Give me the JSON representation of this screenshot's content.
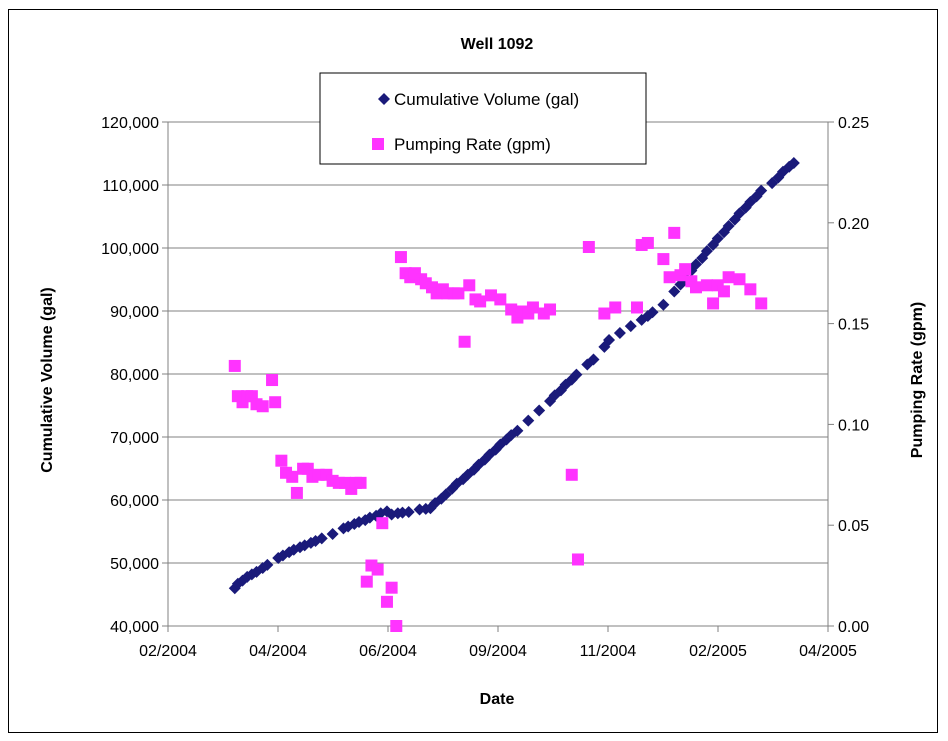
{
  "chart_data": {
    "type": "scatter",
    "title": "Well 1092",
    "xlabel": "Date",
    "ylabel": "Cumulative Volume (gal)",
    "y2label": "Pumping Rate (gpm)",
    "x_ticks": [
      "02/2004",
      "04/2004",
      "06/2004",
      "09/2004",
      "11/2004",
      "02/2005",
      "04/2005"
    ],
    "y_ticks": [
      "40,000",
      "50,000",
      "60,000",
      "70,000",
      "80,000",
      "90,000",
      "100,000",
      "110,000",
      "120,000"
    ],
    "y2_ticks": [
      "0.00",
      "0.05",
      "0.10",
      "0.15",
      "0.20",
      "0.25"
    ],
    "xlim": [
      "2004-02-01",
      "2005-04-01"
    ],
    "ylim": [
      40000,
      120000
    ],
    "y2lim": [
      0,
      0.25
    ],
    "grid": "horizontal",
    "legend_position": "top-center",
    "series": [
      {
        "name": "Cumulative Volume (gal)",
        "axis": "left",
        "color": "#1a1a7a",
        "marker": "diamond",
        "points": [
          [
            "2004-03-15",
            46000
          ],
          [
            "2004-03-17",
            46700
          ],
          [
            "2004-03-20",
            47200
          ],
          [
            "2004-03-23",
            47800
          ],
          [
            "2004-03-26",
            48200
          ],
          [
            "2004-03-29",
            48600
          ],
          [
            "2004-04-02",
            49200
          ],
          [
            "2004-04-05",
            49700
          ],
          [
            "2004-04-12",
            50800
          ],
          [
            "2004-04-15",
            51200
          ],
          [
            "2004-04-19",
            51700
          ],
          [
            "2004-04-22",
            52100
          ],
          [
            "2004-04-26",
            52500
          ],
          [
            "2004-04-29",
            52800
          ],
          [
            "2004-05-03",
            53200
          ],
          [
            "2004-05-06",
            53500
          ],
          [
            "2004-05-10",
            53900
          ],
          [
            "2004-05-17",
            54600
          ],
          [
            "2004-05-24",
            55500
          ],
          [
            "2004-05-27",
            55800
          ],
          [
            "2004-05-31",
            56200
          ],
          [
            "2004-06-03",
            56500
          ],
          [
            "2004-06-07",
            56800
          ],
          [
            "2004-06-10",
            57200
          ],
          [
            "2004-06-14",
            57500
          ],
          [
            "2004-06-17",
            57900
          ],
          [
            "2004-06-21",
            58200
          ],
          [
            "2004-06-24",
            57700
          ],
          [
            "2004-06-28",
            57900
          ],
          [
            "2004-07-01",
            58000
          ],
          [
            "2004-07-05",
            58100
          ],
          [
            "2004-07-12",
            58500
          ],
          [
            "2004-07-16",
            58600
          ],
          [
            "2004-07-19",
            58700
          ],
          [
            "2004-07-22",
            59500
          ],
          [
            "2004-07-26",
            60200
          ],
          [
            "2004-07-29",
            60900
          ],
          [
            "2004-08-02",
            61800
          ],
          [
            "2004-08-05",
            62600
          ],
          [
            "2004-08-09",
            63300
          ],
          [
            "2004-08-12",
            64000
          ],
          [
            "2004-08-16",
            64800
          ],
          [
            "2004-08-19",
            65600
          ],
          [
            "2004-08-23",
            66400
          ],
          [
            "2004-08-26",
            67200
          ],
          [
            "2004-08-30",
            68000
          ],
          [
            "2004-09-02",
            68800
          ],
          [
            "2004-09-06",
            69600
          ],
          [
            "2004-09-09",
            70300
          ],
          [
            "2004-09-13",
            71000
          ],
          [
            "2004-09-20",
            72600
          ],
          [
            "2004-09-27",
            74200
          ],
          [
            "2004-10-04",
            75700
          ],
          [
            "2004-10-07",
            76600
          ],
          [
            "2004-10-11",
            77400
          ],
          [
            "2004-10-14",
            78300
          ],
          [
            "2004-10-18",
            79100
          ],
          [
            "2004-10-21",
            79900
          ],
          [
            "2004-10-28",
            81500
          ],
          [
            "2004-11-01",
            82300
          ],
          [
            "2004-11-08",
            84300
          ],
          [
            "2004-11-11",
            85400
          ],
          [
            "2004-11-18",
            86500
          ],
          [
            "2004-11-25",
            87600
          ],
          [
            "2004-12-02",
            88600
          ],
          [
            "2004-12-06",
            89200
          ],
          [
            "2004-12-09",
            89800
          ],
          [
            "2004-12-16",
            91000
          ],
          [
            "2004-12-23",
            93100
          ],
          [
            "2004-12-27",
            94200
          ],
          [
            "2004-12-30",
            95300
          ],
          [
            "2005-01-03",
            96400
          ],
          [
            "2005-01-06",
            97400
          ],
          [
            "2005-01-10",
            98400
          ],
          [
            "2005-01-13",
            99500
          ],
          [
            "2005-01-17",
            100500
          ],
          [
            "2005-01-20",
            101500
          ],
          [
            "2005-01-24",
            102500
          ],
          [
            "2005-01-27",
            103500
          ],
          [
            "2005-01-31",
            104500
          ],
          [
            "2005-02-03",
            105500
          ],
          [
            "2005-02-07",
            106400
          ],
          [
            "2005-02-10",
            107300
          ],
          [
            "2005-02-14",
            108200
          ],
          [
            "2005-02-17",
            109100
          ],
          [
            "2005-02-24",
            110300
          ],
          [
            "2005-02-28",
            111200
          ],
          [
            "2005-03-03",
            112100
          ],
          [
            "2005-03-07",
            112900
          ],
          [
            "2005-03-10",
            113500
          ]
        ]
      },
      {
        "name": "Pumping Rate (gpm)",
        "axis": "right",
        "color": "#ff33ff",
        "marker": "square",
        "points": [
          [
            "2004-03-15",
            0.129
          ],
          [
            "2004-03-17",
            0.114
          ],
          [
            "2004-03-20",
            0.111
          ],
          [
            "2004-03-23",
            0.114
          ],
          [
            "2004-03-26",
            0.114
          ],
          [
            "2004-03-29",
            0.11
          ],
          [
            "2004-04-02",
            0.109
          ],
          [
            "2004-04-08",
            0.122
          ],
          [
            "2004-04-10",
            0.111
          ],
          [
            "2004-04-14",
            0.082
          ],
          [
            "2004-04-17",
            0.076
          ],
          [
            "2004-04-21",
            0.074
          ],
          [
            "2004-04-24",
            0.066
          ],
          [
            "2004-04-28",
            0.078
          ],
          [
            "2004-05-01",
            0.078
          ],
          [
            "2004-05-04",
            0.074
          ],
          [
            "2004-05-08",
            0.075
          ],
          [
            "2004-05-13",
            0.075
          ],
          [
            "2004-05-17",
            0.072
          ],
          [
            "2004-05-21",
            0.071
          ],
          [
            "2004-05-25",
            0.071
          ],
          [
            "2004-05-29",
            0.068
          ],
          [
            "2004-06-01",
            0.071
          ],
          [
            "2004-06-04",
            0.071
          ],
          [
            "2004-06-08",
            0.022
          ],
          [
            "2004-06-11",
            0.03
          ],
          [
            "2004-06-15",
            0.028
          ],
          [
            "2004-06-18",
            0.051
          ],
          [
            "2004-06-21",
            0.012
          ],
          [
            "2004-06-24",
            0.019
          ],
          [
            "2004-06-27",
            0.0
          ],
          [
            "2004-06-30",
            0.183
          ],
          [
            "2004-07-03",
            0.175
          ],
          [
            "2004-07-06",
            0.173
          ],
          [
            "2004-07-09",
            0.175
          ],
          [
            "2004-07-13",
            0.172
          ],
          [
            "2004-07-16",
            0.17
          ],
          [
            "2004-07-20",
            0.168
          ],
          [
            "2004-07-23",
            0.165
          ],
          [
            "2004-07-27",
            0.167
          ],
          [
            "2004-07-30",
            0.165
          ],
          [
            "2004-08-03",
            0.165
          ],
          [
            "2004-08-06",
            0.165
          ],
          [
            "2004-08-10",
            0.141
          ],
          [
            "2004-08-13",
            0.169
          ],
          [
            "2004-08-17",
            0.162
          ],
          [
            "2004-08-20",
            0.161
          ],
          [
            "2004-08-27",
            0.164
          ],
          [
            "2004-09-02",
            0.162
          ],
          [
            "2004-09-09",
            0.157
          ],
          [
            "2004-09-13",
            0.153
          ],
          [
            "2004-09-16",
            0.156
          ],
          [
            "2004-09-20",
            0.155
          ],
          [
            "2004-09-23",
            0.158
          ],
          [
            "2004-09-30",
            0.155
          ],
          [
            "2004-10-04",
            0.157
          ],
          [
            "2004-10-18",
            0.075
          ],
          [
            "2004-10-22",
            0.033
          ],
          [
            "2004-10-29",
            0.188
          ],
          [
            "2004-11-08",
            0.155
          ],
          [
            "2004-11-15",
            0.158
          ],
          [
            "2004-11-29",
            0.158
          ],
          [
            "2004-12-02",
            0.189
          ],
          [
            "2004-12-06",
            0.19
          ],
          [
            "2004-12-16",
            0.182
          ],
          [
            "2004-12-20",
            0.173
          ],
          [
            "2004-12-23",
            0.195
          ],
          [
            "2004-12-27",
            0.174
          ],
          [
            "2004-12-30",
            0.177
          ],
          [
            "2005-01-03",
            0.171
          ],
          [
            "2005-01-06",
            0.168
          ],
          [
            "2005-01-13",
            0.169
          ],
          [
            "2005-01-17",
            0.16
          ],
          [
            "2005-01-20",
            0.169
          ],
          [
            "2005-01-24",
            0.166
          ],
          [
            "2005-01-27",
            0.173
          ],
          [
            "2005-02-03",
            0.172
          ],
          [
            "2005-02-10",
            0.167
          ],
          [
            "2005-02-17",
            0.16
          ]
        ]
      }
    ]
  }
}
